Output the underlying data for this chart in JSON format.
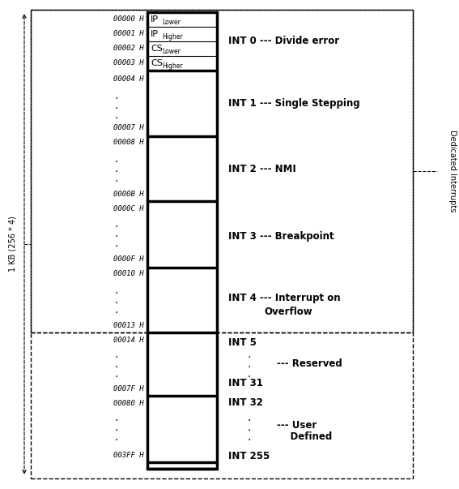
{
  "fig_width": 5.67,
  "fig_height": 6.03,
  "bg_color": "#ffffff",
  "address_labels": [
    {
      "addr": "00000 H",
      "row": 0
    },
    {
      "addr": "00001 H",
      "row": 1
    },
    {
      "addr": "00002 H",
      "row": 2
    },
    {
      "addr": "00003 H",
      "row": 3
    },
    {
      "addr": "00004 H",
      "row": 4
    },
    {
      "addr": "00007 H",
      "row": 7
    },
    {
      "addr": "00008 H",
      "row": 8
    },
    {
      "addr": "0000B H",
      "row": 11
    },
    {
      "addr": "0000C H",
      "row": 12
    },
    {
      "addr": "0000F H",
      "row": 15
    },
    {
      "addr": "00010 H",
      "row": 16
    },
    {
      "addr": "00013 H",
      "row": 19
    },
    {
      "addr": "00014 H",
      "row": 20
    },
    {
      "addr": "0007F H",
      "row": 31
    },
    {
      "addr": "00080 H",
      "row": 32
    },
    {
      "addr": "003FF H",
      "row": 43
    }
  ],
  "reg_labels": [
    {
      "main": "IP",
      "sub": "Lower"
    },
    {
      "main": "IP",
      "sub": "Higher"
    },
    {
      "main": "CS",
      "sub": "Lower"
    },
    {
      "main": "CS",
      "sub": "Higher"
    }
  ],
  "side_label": "1 KB (256 * 4)",
  "right_label": "Dedicated Interrupts"
}
